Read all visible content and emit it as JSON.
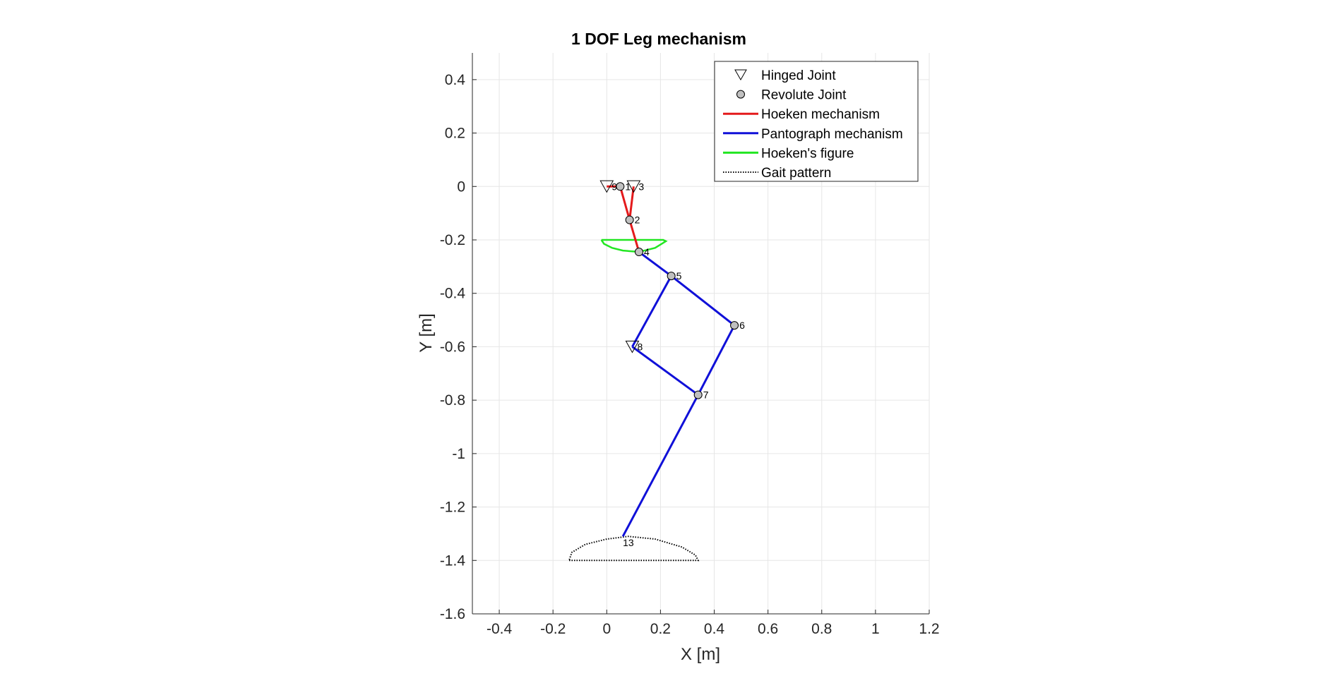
{
  "chart_data": {
    "type": "line",
    "title": "1 DOF Leg mechanism",
    "xlabel": "X [m]",
    "ylabel": "Y [m]",
    "xlim": [
      -0.5,
      1.2
    ],
    "ylim": [
      -1.6,
      0.5
    ],
    "xticks": [
      -0.4,
      -0.2,
      0,
      0.2,
      0.4,
      0.6,
      0.8,
      1,
      1.2
    ],
    "xtick_labels": [
      "-0.4",
      "-0.2",
      "0",
      "0.2",
      "0.4",
      "0.6",
      "0.8",
      "1",
      "1.2"
    ],
    "yticks": [
      0.4,
      0.2,
      0,
      -0.2,
      -0.4,
      -0.6,
      -0.8,
      -1,
      -1.2,
      -1.4,
      -1.6
    ],
    "ytick_labels": [
      "0.4",
      "0.2",
      "0",
      "-0.2",
      "-0.4",
      "-0.6",
      "-0.8",
      "-1",
      "-1.2",
      "-1.4",
      "-1.6"
    ],
    "grid": true,
    "legend_location": "top-right",
    "legend": [
      {
        "label": "Hinged Joint",
        "marker": "triangle-down",
        "color": "#000000"
      },
      {
        "label": "Revolute Joint",
        "marker": "circle",
        "color": "#c0c0c0"
      },
      {
        "label": "Hoeken mechanism",
        "line": "solid",
        "color": "#e41a1c"
      },
      {
        "label": "Pantograph mechanism",
        "line": "solid",
        "color": "#1010d8"
      },
      {
        "label": "Hoeken's figure",
        "line": "solid",
        "color": "#22e622"
      },
      {
        "label": "Gait pattern",
        "line": "dotted",
        "color": "#000000"
      }
    ],
    "joints": [
      {
        "label": "1",
        "x": 0.05,
        "y": 0.0,
        "type": "revolute"
      },
      {
        "label": "2",
        "x": 0.085,
        "y": -0.125,
        "type": "revolute"
      },
      {
        "label": "3",
        "x": 0.1,
        "y": 0.0,
        "type": "hinged"
      },
      {
        "label": "4",
        "x": 0.12,
        "y": -0.245,
        "type": "revolute"
      },
      {
        "label": "5",
        "x": 0.24,
        "y": -0.335,
        "type": "revolute"
      },
      {
        "label": "6",
        "x": 0.475,
        "y": -0.52,
        "type": "revolute"
      },
      {
        "label": "7",
        "x": 0.34,
        "y": -0.78,
        "type": "revolute"
      },
      {
        "label": "8",
        "x": 0.095,
        "y": -0.6,
        "type": "hinged"
      },
      {
        "label": "9",
        "x": 0.0,
        "y": 0.0,
        "type": "hinged"
      },
      {
        "label": "13",
        "x": 0.06,
        "y": -1.31,
        "type": "end"
      }
    ],
    "hoeken_mechanism": [
      {
        "x": [
          0.0,
          0.05
        ],
        "y": [
          0.0,
          0.0
        ]
      },
      {
        "x": [
          0.05,
          0.085
        ],
        "y": [
          0.0,
          -0.125
        ]
      },
      {
        "x": [
          0.1,
          0.085
        ],
        "y": [
          0.0,
          -0.125
        ]
      },
      {
        "x": [
          0.085,
          0.12
        ],
        "y": [
          -0.125,
          -0.245
        ]
      }
    ],
    "pantograph_mechanism": [
      {
        "x": [
          0.12,
          0.24
        ],
        "y": [
          -0.245,
          -0.335
        ]
      },
      {
        "x": [
          0.24,
          0.475
        ],
        "y": [
          -0.335,
          -0.52
        ]
      },
      {
        "x": [
          0.475,
          0.34
        ],
        "y": [
          -0.52,
          -0.78
        ]
      },
      {
        "x": [
          0.24,
          0.095
        ],
        "y": [
          -0.335,
          -0.6
        ]
      },
      {
        "x": [
          0.095,
          0.34
        ],
        "y": [
          -0.6,
          -0.78
        ]
      },
      {
        "x": [
          0.34,
          0.06
        ],
        "y": [
          -0.78,
          -1.31
        ]
      }
    ],
    "hoekens_figure": {
      "x": [
        -0.02,
        0.03,
        0.09,
        0.15,
        0.21,
        0.22,
        0.18,
        0.12,
        0.06,
        0.02,
        -0.01,
        -0.02
      ],
      "y": [
        -0.2,
        -0.2,
        -0.2,
        -0.2,
        -0.2,
        -0.205,
        -0.23,
        -0.245,
        -0.24,
        -0.23,
        -0.215,
        -0.2
      ]
    },
    "gait_pattern": {
      "x": [
        -0.14,
        0.0,
        0.15,
        0.34,
        0.33,
        0.28,
        0.18,
        0.08,
        0.0,
        -0.08,
        -0.13,
        -0.14
      ],
      "y": [
        -1.4,
        -1.4,
        -1.4,
        -1.4,
        -1.38,
        -1.35,
        -1.32,
        -1.31,
        -1.32,
        -1.34,
        -1.37,
        -1.4
      ]
    }
  }
}
